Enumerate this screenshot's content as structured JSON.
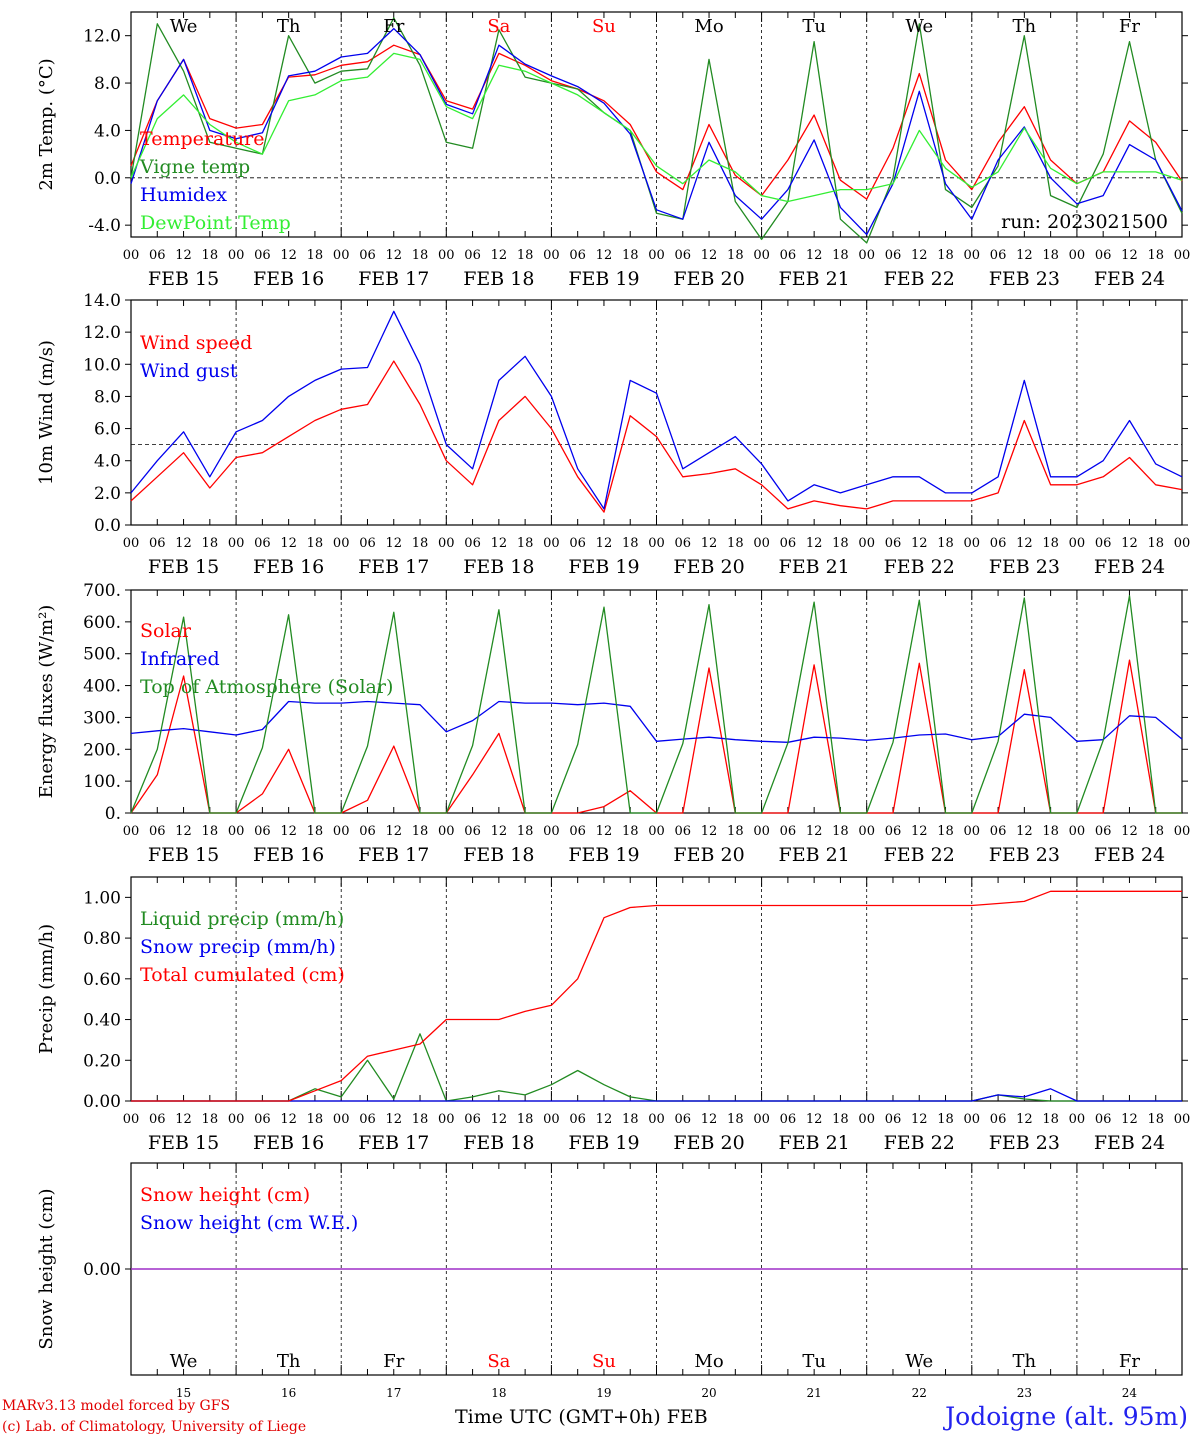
{
  "colors": {
    "red": "#ff0000",
    "green": "#228b22",
    "blue": "#0000ee",
    "lightgreen": "#33ee33",
    "purple": "#8a2be2",
    "weekend": "#ff0000",
    "axis": "#000000"
  },
  "days": [
    "We",
    "Th",
    "Fr",
    "Sa",
    "Su",
    "Mo",
    "Tu",
    "We",
    "Th",
    "Fr"
  ],
  "weekend_days": [
    3,
    4
  ],
  "date_labels": [
    "FEB 15",
    "FEB 16",
    "FEB 17",
    "FEB 18",
    "FEB 19",
    "FEB 20",
    "FEB 21",
    "FEB 22",
    "FEB 23",
    "FEB 24"
  ],
  "day_numbers": [
    "15",
    "16",
    "17",
    "18",
    "19",
    "20",
    "21",
    "22",
    "23",
    "24"
  ],
  "hour_ticks": [
    "00",
    "06",
    "12",
    "18"
  ],
  "final_hour_tick": "00",
  "footer": {
    "model": "MARv3.13 model forced by GFS",
    "copyright": "(c) Lab. of Climatology, University of Liege",
    "time_axis": "Time UTC (GMT+0h) FEB",
    "station": "Jodoigne (alt. 95m)"
  },
  "chart_data": [
    {
      "type": "line",
      "ylabel": "2m Temp. (°C)",
      "annotation": "run: 2023021500",
      "ylim": [
        -5.0,
        14.0
      ],
      "yticks": [
        "-4.0",
        "0.0",
        "4.0",
        "8.0",
        "12.0"
      ],
      "reference_line": 0.0,
      "x": [
        0,
        6,
        12,
        18,
        24,
        30,
        36,
        42,
        48,
        54,
        60,
        66,
        72,
        78,
        84,
        90,
        96,
        102,
        108,
        114,
        120,
        126,
        132,
        138,
        144,
        150,
        156,
        162,
        168,
        174,
        180,
        186,
        192,
        198,
        204,
        210,
        216,
        222,
        228,
        234,
        240
      ],
      "series": [
        {
          "name": "Temperature",
          "color": "red",
          "values": [
            1.0,
            6.5,
            10.0,
            5.0,
            4.2,
            4.5,
            8.5,
            8.7,
            9.5,
            9.8,
            11.2,
            10.4,
            6.5,
            5.8,
            10.5,
            9.5,
            8.2,
            7.5,
            6.5,
            4.5,
            0.5,
            -1.0,
            4.5,
            0.2,
            -1.5,
            1.5,
            5.3,
            -0.2,
            -1.8,
            2.5,
            8.8,
            1.5,
            -1.0,
            3.0,
            6.0,
            1.5,
            -0.5,
            0.5,
            4.8,
            3.0,
            -0.3
          ]
        },
        {
          "name": "Vigne temp",
          "color": "green",
          "values": [
            0.0,
            13.0,
            9.0,
            3.0,
            2.5,
            2.0,
            12.0,
            8.0,
            9.0,
            9.2,
            13.5,
            9.5,
            3.0,
            2.5,
            12.5,
            8.5,
            8.0,
            7.5,
            5.5,
            4.0,
            -3.0,
            -3.5,
            10.0,
            -2.0,
            -5.2,
            -2.0,
            11.5,
            -3.5,
            -5.5,
            0.0,
            13.0,
            -1.0,
            -2.5,
            1.0,
            12.0,
            -1.5,
            -2.5,
            2.0,
            11.5,
            1.5,
            -3.0
          ]
        },
        {
          "name": "Humidex",
          "color": "blue",
          "values": [
            -0.5,
            6.5,
            10.0,
            4.0,
            3.3,
            3.8,
            8.6,
            9.0,
            10.2,
            10.5,
            12.6,
            10.4,
            6.2,
            5.4,
            11.2,
            9.6,
            8.6,
            7.7,
            6.3,
            3.7,
            -2.7,
            -3.5,
            3.0,
            -1.5,
            -3.5,
            -1.0,
            3.2,
            -2.5,
            -4.8,
            -0.5,
            7.3,
            -0.5,
            -3.5,
            1.5,
            4.3,
            0.0,
            -2.2,
            -1.5,
            2.8,
            1.5,
            -2.8
          ]
        },
        {
          "name": "DewPoint Temp",
          "color": "lightgreen",
          "values": [
            0.0,
            5.0,
            7.0,
            4.5,
            3.0,
            2.0,
            6.5,
            7.0,
            8.2,
            8.5,
            10.5,
            10.0,
            6.0,
            5.0,
            9.5,
            9.0,
            8.0,
            7.0,
            5.5,
            4.0,
            1.0,
            -0.5,
            1.5,
            0.5,
            -1.5,
            -2.0,
            -1.5,
            -1.0,
            -1.0,
            -0.5,
            4.0,
            0.8,
            -0.8,
            0.5,
            4.2,
            0.8,
            -0.5,
            0.5,
            0.5,
            0.5,
            -0.2
          ]
        }
      ]
    },
    {
      "type": "line",
      "ylabel": "10m Wind (m/s)",
      "ylim": [
        0.0,
        14.0
      ],
      "yticks": [
        "0.0",
        "2.0",
        "4.0",
        "6.0",
        "8.0",
        "10.0",
        "12.0",
        "14.0"
      ],
      "reference_line": 5.0,
      "x": [
        0,
        6,
        12,
        18,
        24,
        30,
        36,
        42,
        48,
        54,
        60,
        66,
        72,
        78,
        84,
        90,
        96,
        102,
        108,
        114,
        120,
        126,
        132,
        138,
        144,
        150,
        156,
        162,
        168,
        174,
        180,
        186,
        192,
        198,
        204,
        210,
        216,
        222,
        228,
        234,
        240
      ],
      "series": [
        {
          "name": "Wind speed",
          "color": "red",
          "values": [
            1.5,
            3.0,
            4.5,
            2.3,
            4.2,
            4.5,
            5.5,
            6.5,
            7.2,
            7.5,
            10.2,
            7.5,
            4.0,
            2.5,
            6.5,
            8.0,
            6.0,
            3.0,
            0.8,
            6.8,
            5.5,
            3.0,
            3.2,
            3.5,
            2.5,
            1.0,
            1.5,
            1.2,
            1.0,
            1.5,
            1.5,
            1.5,
            1.5,
            2.0,
            6.5,
            2.5,
            2.5,
            3.0,
            4.2,
            2.5,
            2.2
          ]
        },
        {
          "name": "Wind gust",
          "color": "blue",
          "values": [
            2.0,
            4.0,
            5.8,
            3.0,
            5.8,
            6.5,
            8.0,
            9.0,
            9.7,
            9.8,
            13.3,
            10.0,
            5.0,
            3.5,
            9.0,
            10.5,
            8.0,
            3.5,
            1.0,
            9.0,
            8.2,
            3.5,
            4.5,
            5.5,
            3.8,
            1.5,
            2.5,
            2.0,
            2.5,
            3.0,
            3.0,
            2.0,
            2.0,
            3.0,
            9.0,
            3.0,
            3.0,
            4.0,
            6.5,
            3.8,
            3.0
          ]
        }
      ]
    },
    {
      "type": "line",
      "ylabel": "Energy fluxes (W/m²)",
      "ylim": [
        0,
        700
      ],
      "yticks": [
        "0.",
        "100.",
        "200.",
        "300.",
        "400.",
        "500.",
        "600.",
        "700."
      ],
      "x": [
        0,
        6,
        12,
        18,
        24,
        30,
        36,
        42,
        48,
        54,
        60,
        66,
        72,
        78,
        84,
        90,
        96,
        102,
        108,
        114,
        120,
        126,
        132,
        138,
        144,
        150,
        156,
        162,
        168,
        174,
        180,
        186,
        192,
        198,
        204,
        210,
        216,
        222,
        228,
        234,
        240
      ],
      "series": [
        {
          "name": "Solar",
          "color": "red",
          "values": [
            0,
            120,
            430,
            0,
            0,
            60,
            200,
            0,
            0,
            40,
            210,
            0,
            0,
            120,
            250,
            0,
            0,
            0,
            20,
            70,
            0,
            0,
            455,
            0,
            0,
            0,
            465,
            0,
            0,
            0,
            470,
            0,
            0,
            0,
            450,
            0,
            0,
            0,
            480,
            0,
            0
          ]
        },
        {
          "name": "Infrared",
          "color": "blue",
          "values": [
            250,
            258,
            265,
            255,
            245,
            262,
            350,
            345,
            345,
            350,
            345,
            340,
            255,
            290,
            350,
            345,
            345,
            340,
            345,
            335,
            225,
            232,
            238,
            230,
            225,
            222,
            238,
            235,
            228,
            235,
            245,
            248,
            230,
            240,
            310,
            300,
            225,
            230,
            305,
            300,
            232
          ]
        },
        {
          "name": "Top of Atmosphere (Solar)",
          "color": "green",
          "values": [
            0,
            200,
            615,
            0,
            0,
            205,
            622,
            0,
            0,
            210,
            630,
            0,
            0,
            212,
            638,
            0,
            0,
            215,
            646,
            0,
            0,
            218,
            654,
            0,
            0,
            220,
            662,
            0,
            0,
            222,
            668,
            0,
            0,
            225,
            675,
            0,
            0,
            228,
            682,
            0,
            0
          ]
        }
      ]
    },
    {
      "type": "line",
      "ylabel": "Precip (mm/h)",
      "ylim": [
        0.0,
        1.1
      ],
      "yticks": [
        "0.00",
        "0.20",
        "0.40",
        "0.60",
        "0.80",
        "1.00"
      ],
      "x": [
        0,
        6,
        12,
        18,
        24,
        30,
        36,
        42,
        48,
        54,
        60,
        66,
        72,
        78,
        84,
        90,
        96,
        102,
        108,
        114,
        120,
        126,
        132,
        138,
        144,
        150,
        156,
        162,
        168,
        174,
        180,
        186,
        192,
        198,
        204,
        210,
        216,
        222,
        228,
        234,
        240
      ],
      "series": [
        {
          "name": "Liquid precip (mm/h)",
          "color": "green",
          "values": [
            0,
            0,
            0,
            0,
            0,
            0,
            0,
            0.06,
            0.02,
            0.2,
            0.01,
            0.33,
            0,
            0.02,
            0.05,
            0.03,
            0.08,
            0.15,
            0.08,
            0.02,
            0,
            0,
            0,
            0,
            0,
            0,
            0,
            0,
            0,
            0,
            0,
            0,
            0,
            0.03,
            0.01,
            0,
            0,
            0,
            0,
            0,
            0
          ]
        },
        {
          "name": "Snow precip (mm/h)",
          "color": "blue",
          "values": [
            0,
            0,
            0,
            0,
            0,
            0,
            0,
            0,
            0,
            0,
            0,
            0,
            0,
            0,
            0,
            0,
            0,
            0,
            0,
            0,
            0,
            0,
            0,
            0,
            0,
            0,
            0,
            0,
            0,
            0,
            0,
            0,
            0,
            0.03,
            0.02,
            0.06,
            0,
            0,
            0,
            0,
            0
          ]
        },
        {
          "name": "Total cumulated (cm)",
          "color": "red",
          "values": [
            0,
            0,
            0,
            0,
            0,
            0,
            0,
            0.05,
            0.1,
            0.22,
            0.25,
            0.28,
            0.4,
            0.4,
            0.4,
            0.44,
            0.47,
            0.6,
            0.9,
            0.95,
            0.96,
            0.96,
            0.96,
            0.96,
            0.96,
            0.96,
            0.96,
            0.96,
            0.96,
            0.96,
            0.96,
            0.96,
            0.96,
            0.97,
            0.98,
            1.03,
            1.03,
            1.03,
            1.03,
            1.03,
            1.03
          ]
        }
      ]
    },
    {
      "type": "line",
      "ylabel": "Snow height (cm)",
      "ylim": [
        -1.0,
        1.0
      ],
      "yticks": [
        "0.00"
      ],
      "x": [
        0,
        240
      ],
      "series": [
        {
          "name": "Snow height (cm)",
          "color": "red",
          "values": [
            0,
            0
          ]
        },
        {
          "name": "Snow height (cm W.E.)",
          "color": "blue",
          "values": [
            0,
            0
          ]
        }
      ]
    }
  ]
}
